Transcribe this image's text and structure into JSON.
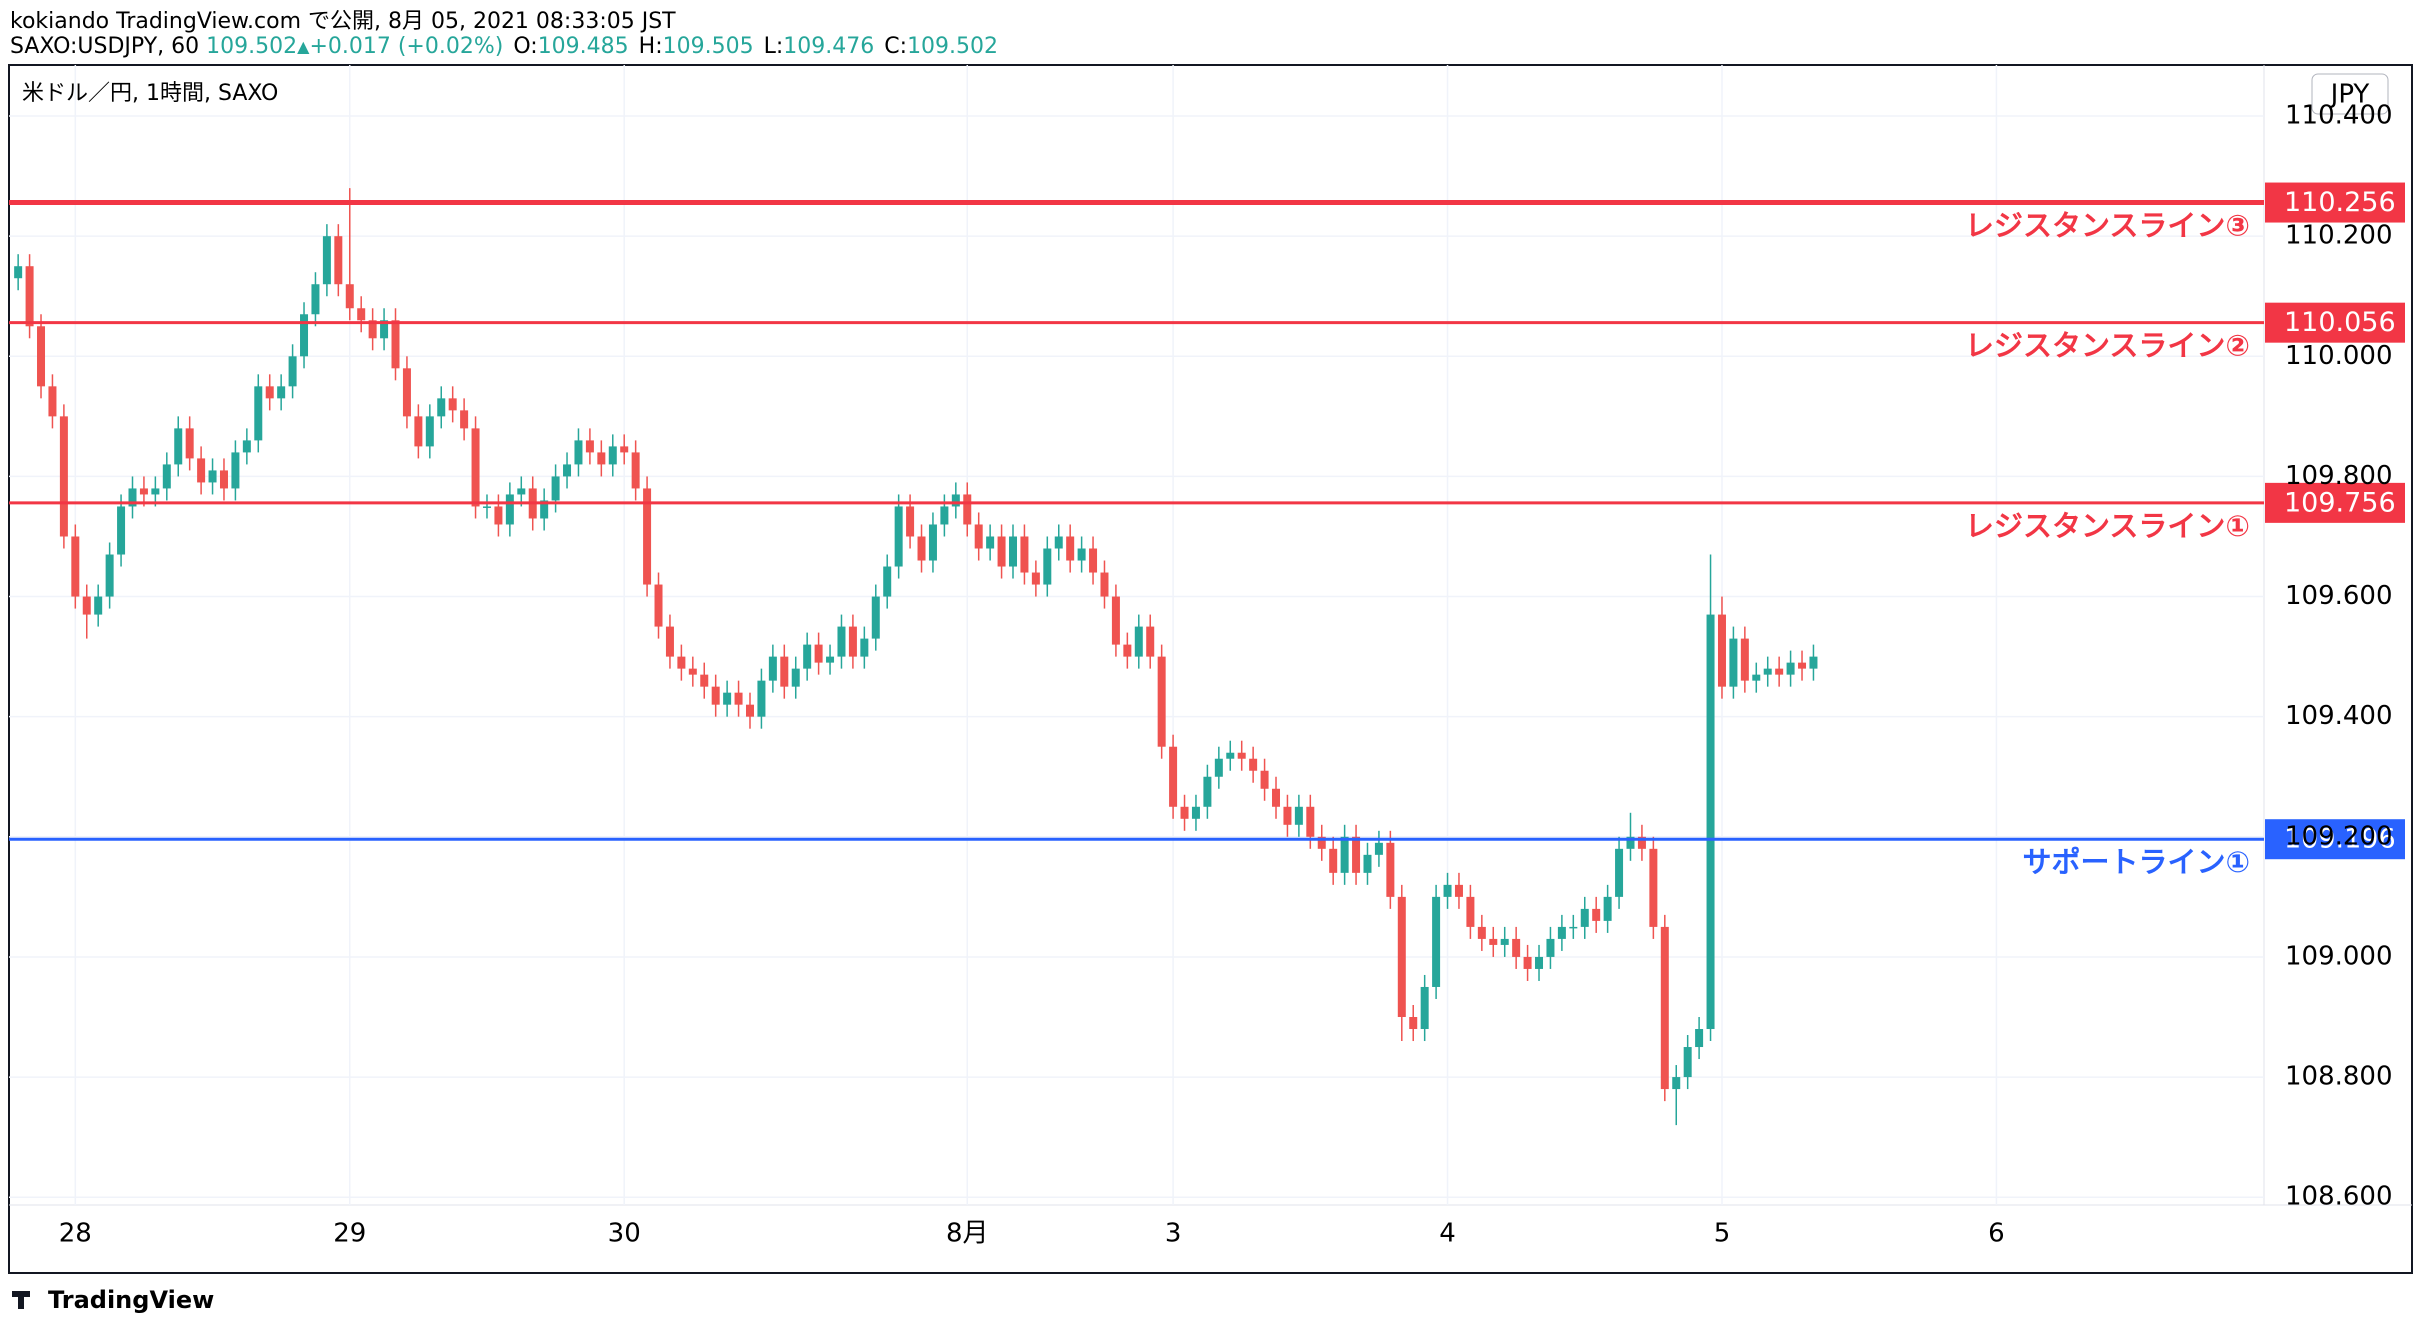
{
  "header": {
    "publisher": "kokiando TradingView.com で公開, 8月 05, 2021 08:33:05 JST",
    "symbol": "SAXO:USDJPY, 60",
    "last": "109.502",
    "arrow": "▲",
    "change": "+0.017 (+0.02%)",
    "ohlc": [
      {
        "key": "O:",
        "value": "109.485"
      },
      {
        "key": "H:",
        "value": "109.505"
      },
      {
        "key": "L:",
        "value": "109.476"
      },
      {
        "key": "C:",
        "value": "109.502"
      }
    ]
  },
  "footer": {
    "brand": "TradingView"
  },
  "chart_data": {
    "type": "candlestick",
    "title": "米ドル／円, 1時間, SAXO",
    "currency": "JPY",
    "up_color": "#26a69a",
    "down_color": "#ef5350",
    "xlim": [
      -0.8,
      196.4
    ],
    "ylim": [
      108.587,
      110.485
    ],
    "yticks": [
      {
        "value": 108.6,
        "label": "108.600"
      },
      {
        "value": 108.8,
        "label": "108.800"
      },
      {
        "value": 109,
        "label": "109.000"
      },
      {
        "value": 109.2,
        "label": "109.200"
      },
      {
        "value": 109.4,
        "label": "109.400"
      },
      {
        "value": 109.6,
        "label": "109.600"
      },
      {
        "value": 109.8,
        "label": "109.800"
      },
      {
        "value": 110,
        "label": "110.000"
      },
      {
        "value": 110.2,
        "label": "110.200"
      },
      {
        "value": 110.4,
        "label": "110.400"
      }
    ],
    "xticks": [
      {
        "value": 5,
        "label": "28"
      },
      {
        "value": 29,
        "label": "29"
      },
      {
        "value": 53,
        "label": "30"
      },
      {
        "value": 83,
        "label": "8月"
      },
      {
        "value": 101,
        "label": "3"
      },
      {
        "value": 125,
        "label": "4"
      },
      {
        "value": 149,
        "label": "5"
      },
      {
        "value": 173,
        "label": "6"
      }
    ],
    "lines": [
      {
        "value": 110.256,
        "label": "レジスタンスライン③",
        "color": "#f23645"
      },
      {
        "value": 110.056,
        "label": "レジスタンスライン②",
        "color": "#f23645"
      },
      {
        "value": 109.756,
        "label": "レジスタンスライン①",
        "color": "#f23645"
      },
      {
        "value": 109.196,
        "label": "サポートライン①",
        "color": "#2962ff"
      }
    ],
    "open": [
      110.13,
      110.15,
      110.05,
      109.95,
      109.9,
      109.7,
      109.6,
      109.57,
      109.6,
      109.67,
      109.75,
      109.78,
      109.77,
      109.78,
      109.82,
      109.88,
      109.83,
      109.79,
      109.81,
      109.78,
      109.84,
      109.86,
      109.95,
      109.93,
      109.95,
      110.0,
      110.07,
      110.12,
      110.2,
      110.12,
      110.08,
      110.06,
      110.03,
      110.06,
      109.98,
      109.9,
      109.85,
      109.9,
      109.93,
      109.91,
      109.88,
      109.75,
      109.75,
      109.72,
      109.77,
      109.78,
      109.73,
      109.76,
      109.8,
      109.82,
      109.86,
      109.84,
      109.82,
      109.85,
      109.84,
      109.78,
      109.62,
      109.55,
      109.5,
      109.48,
      109.47,
      109.45,
      109.42,
      109.44,
      109.42,
      109.4,
      109.46,
      109.5,
      109.45,
      109.48,
      109.52,
      109.49,
      109.5,
      109.55,
      109.5,
      109.53,
      109.6,
      109.65,
      109.75,
      109.7,
      109.66,
      109.72,
      109.75,
      109.77,
      109.72,
      109.68,
      109.7,
      109.65,
      109.7,
      109.64,
      109.62,
      109.68,
      109.7,
      109.66,
      109.68,
      109.64,
      109.6,
      109.52,
      109.5,
      109.55,
      109.5,
      109.35,
      109.25,
      109.23,
      109.25,
      109.3,
      109.33,
      109.34,
      109.33,
      109.31,
      109.28,
      109.25,
      109.22,
      109.25,
      109.2,
      109.18,
      109.14,
      109.2,
      109.14,
      109.17,
      109.19,
      109.1,
      108.9,
      108.88,
      108.95,
      109.1,
      109.12,
      109.1,
      109.05,
      109.03,
      109.02,
      109.03,
      109.0,
      108.98,
      109.0,
      109.03,
      109.05,
      109.05,
      109.08,
      109.06,
      109.1,
      109.18,
      109.2,
      109.18,
      109.05,
      108.78,
      108.8,
      108.85,
      108.88,
      109.57,
      109.45,
      109.53,
      109.46,
      109.47,
      109.48,
      109.47,
      109.49,
      109.48
    ],
    "high": [
      110.17,
      110.17,
      110.07,
      109.97,
      109.92,
      109.72,
      109.62,
      109.62,
      109.69,
      109.77,
      109.8,
      109.8,
      109.8,
      109.84,
      109.9,
      109.9,
      109.85,
      109.83,
      109.83,
      109.86,
      109.88,
      109.97,
      109.97,
      109.97,
      110.02,
      110.09,
      110.14,
      110.22,
      110.22,
      110.28,
      110.1,
      110.08,
      110.08,
      110.08,
      110.0,
      109.92,
      109.92,
      109.95,
      109.95,
      109.93,
      109.9,
      109.77,
      109.77,
      109.79,
      109.8,
      109.8,
      109.78,
      109.82,
      109.84,
      109.88,
      109.88,
      109.86,
      109.87,
      109.87,
      109.86,
      109.8,
      109.64,
      109.57,
      109.52,
      109.5,
      109.49,
      109.47,
      109.46,
      109.46,
      109.44,
      109.48,
      109.52,
      109.52,
      109.5,
      109.54,
      109.54,
      109.52,
      109.57,
      109.57,
      109.55,
      109.62,
      109.67,
      109.77,
      109.77,
      109.72,
      109.74,
      109.77,
      109.79,
      109.79,
      109.74,
      109.72,
      109.72,
      109.72,
      109.72,
      109.66,
      109.7,
      109.72,
      109.72,
      109.7,
      109.7,
      109.66,
      109.62,
      109.54,
      109.57,
      109.57,
      109.52,
      109.37,
      109.27,
      109.27,
      109.32,
      109.35,
      109.36,
      109.36,
      109.35,
      109.33,
      109.3,
      109.27,
      109.27,
      109.27,
      109.22,
      109.2,
      109.22,
      109.22,
      109.19,
      109.21,
      109.21,
      109.12,
      108.92,
      108.97,
      109.12,
      109.14,
      109.14,
      109.12,
      109.07,
      109.05,
      109.05,
      109.05,
      109.02,
      109.02,
      109.05,
      109.07,
      109.07,
      109.1,
      109.1,
      109.12,
      109.2,
      109.24,
      109.22,
      109.2,
      109.07,
      108.82,
      108.87,
      108.9,
      109.67,
      109.6,
      109.55,
      109.55,
      109.49,
      109.5,
      109.5,
      109.51,
      109.51,
      109.52
    ],
    "low": [
      110.11,
      110.03,
      109.93,
      109.88,
      109.68,
      109.58,
      109.53,
      109.55,
      109.58,
      109.65,
      109.73,
      109.75,
      109.75,
      109.76,
      109.8,
      109.81,
      109.77,
      109.77,
      109.76,
      109.76,
      109.82,
      109.84,
      109.91,
      109.91,
      109.93,
      109.98,
      110.05,
      110.1,
      110.1,
      110.06,
      110.04,
      110.01,
      110.01,
      109.96,
      109.88,
      109.83,
      109.83,
      109.88,
      109.89,
      109.86,
      109.73,
      109.73,
      109.7,
      109.7,
      109.75,
      109.71,
      109.71,
      109.74,
      109.78,
      109.8,
      109.82,
      109.8,
      109.8,
      109.82,
      109.76,
      109.6,
      109.53,
      109.48,
      109.46,
      109.45,
      109.43,
      109.4,
      109.4,
      109.4,
      109.38,
      109.38,
      109.44,
      109.43,
      109.43,
      109.46,
      109.47,
      109.47,
      109.48,
      109.48,
      109.48,
      109.51,
      109.58,
      109.63,
      109.68,
      109.64,
      109.64,
      109.7,
      109.73,
      109.7,
      109.66,
      109.66,
      109.63,
      109.63,
      109.62,
      109.6,
      109.6,
      109.66,
      109.64,
      109.64,
      109.62,
      109.58,
      109.5,
      109.48,
      109.48,
      109.48,
      109.33,
      109.23,
      109.21,
      109.21,
      109.23,
      109.28,
      109.31,
      109.31,
      109.29,
      109.26,
      109.23,
      109.2,
      109.2,
      109.18,
      109.16,
      109.12,
      109.12,
      109.12,
      109.12,
      109.15,
      109.08,
      108.86,
      108.86,
      108.86,
      108.93,
      109.08,
      109.08,
      109.03,
      109.01,
      109.0,
      109.0,
      108.98,
      108.96,
      108.96,
      108.98,
      109.01,
      109.03,
      109.03,
      109.04,
      109.04,
      109.08,
      109.16,
      109.16,
      109.03,
      108.76,
      108.72,
      108.78,
      108.83,
      108.86,
      109.43,
      109.43,
      109.44,
      109.44,
      109.45,
      109.45,
      109.45,
      109.46,
      109.46
    ],
    "close": [
      110.15,
      110.05,
      109.95,
      109.9,
      109.7,
      109.6,
      109.57,
      109.6,
      109.67,
      109.75,
      109.78,
      109.77,
      109.78,
      109.82,
      109.88,
      109.83,
      109.79,
      109.81,
      109.78,
      109.84,
      109.86,
      109.95,
      109.93,
      109.95,
      110.0,
      110.07,
      110.12,
      110.2,
      110.12,
      110.08,
      110.06,
      110.03,
      110.06,
      109.98,
      109.9,
      109.85,
      109.9,
      109.93,
      109.91,
      109.88,
      109.75,
      109.75,
      109.72,
      109.77,
      109.78,
      109.73,
      109.76,
      109.8,
      109.82,
      109.86,
      109.84,
      109.82,
      109.85,
      109.84,
      109.78,
      109.62,
      109.55,
      109.5,
      109.48,
      109.47,
      109.45,
      109.42,
      109.44,
      109.42,
      109.4,
      109.46,
      109.5,
      109.45,
      109.48,
      109.52,
      109.49,
      109.5,
      109.55,
      109.5,
      109.53,
      109.6,
      109.65,
      109.75,
      109.7,
      109.66,
      109.72,
      109.75,
      109.77,
      109.72,
      109.68,
      109.7,
      109.65,
      109.7,
      109.64,
      109.62,
      109.68,
      109.7,
      109.66,
      109.68,
      109.64,
      109.6,
      109.52,
      109.5,
      109.55,
      109.5,
      109.35,
      109.25,
      109.23,
      109.25,
      109.3,
      109.33,
      109.34,
      109.33,
      109.31,
      109.28,
      109.25,
      109.22,
      109.25,
      109.2,
      109.18,
      109.14,
      109.2,
      109.14,
      109.17,
      109.19,
      109.1,
      108.9,
      108.88,
      108.95,
      109.1,
      109.12,
      109.1,
      109.05,
      109.03,
      109.02,
      109.03,
      109.0,
      108.98,
      109.0,
      109.03,
      109.05,
      109.05,
      109.08,
      109.06,
      109.1,
      109.18,
      109.2,
      109.18,
      109.05,
      108.78,
      108.8,
      108.85,
      108.88,
      109.57,
      109.45,
      109.53,
      109.46,
      109.47,
      109.48,
      109.47,
      109.49,
      109.48,
      109.5
    ]
  }
}
